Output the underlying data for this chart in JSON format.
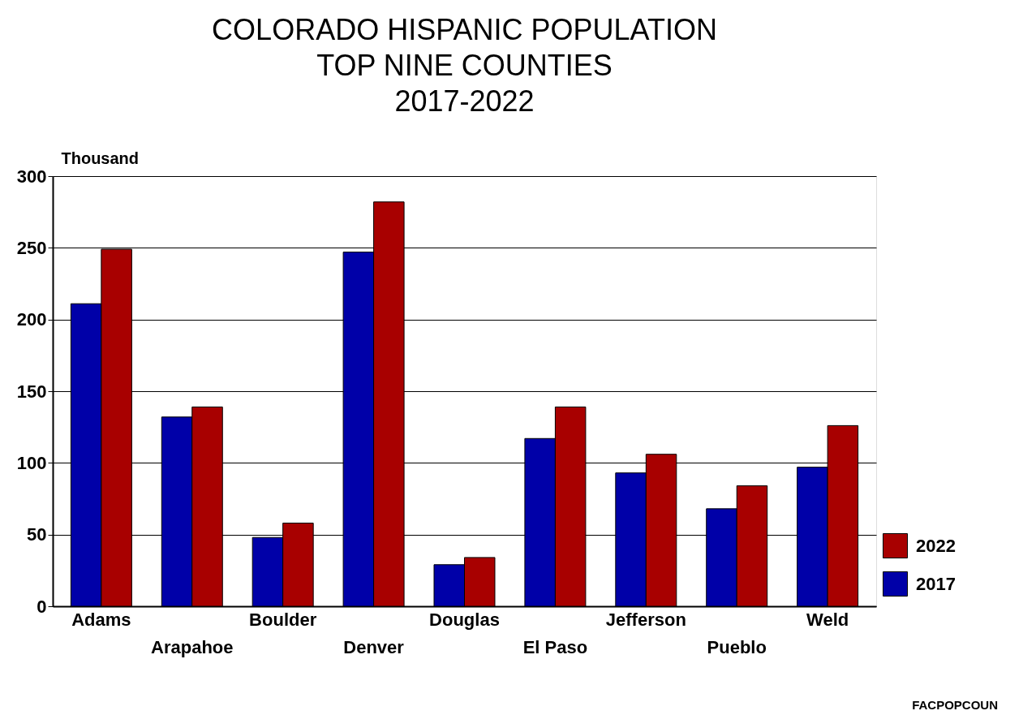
{
  "chart_data": {
    "type": "bar",
    "title": "COLORADO HISPANIC POPULATION\nTOP NINE COUNTIES\n2017-2022",
    "ylabel": "Thousand",
    "categories": [
      "Adams",
      "Arapahoe",
      "Boulder",
      "Denver",
      "Douglas",
      "El Paso",
      "Jefferson",
      "Pueblo",
      "Weld"
    ],
    "series": [
      {
        "name": "2017",
        "color": "#0000a8",
        "values": [
          211,
          132,
          48,
          247,
          29,
          117,
          93,
          68,
          97
        ]
      },
      {
        "name": "2022",
        "color": "#a80000",
        "values": [
          249,
          139,
          58,
          282,
          34,
          139,
          106,
          84,
          126
        ]
      }
    ],
    "ylim": [
      0,
      300
    ],
    "yticks": [
      0,
      50,
      100,
      150,
      200,
      250,
      300
    ],
    "grid": "y",
    "legend": "bottom right",
    "annotations": [
      "FACPOPCOUN"
    ]
  }
}
